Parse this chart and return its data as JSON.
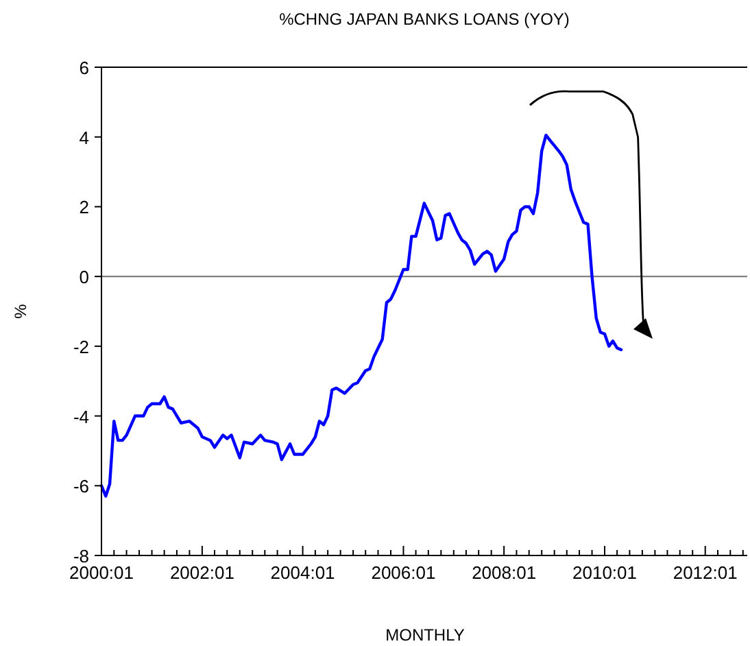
{
  "chart_data": {
    "type": "line",
    "title": "%CHNG JAPAN BANKS LOANS (YOY)",
    "xlabel": "MONTHLY",
    "ylabel": "%",
    "x": [
      "2000-01",
      "2000-02",
      "2000-03",
      "2000-04",
      "2000-05",
      "2000-06",
      "2000-07",
      "2000-09",
      "2000-11",
      "2000-12",
      "2001-01",
      "2001-03",
      "2001-04",
      "2001-05",
      "2001-06",
      "2001-08",
      "2001-10",
      "2001-12",
      "2002-01",
      "2002-03",
      "2002-04",
      "2002-06",
      "2002-07",
      "2002-08",
      "2002-10",
      "2002-11",
      "2003-01",
      "2003-03",
      "2003-04",
      "2003-06",
      "2003-07",
      "2003-08",
      "2003-10",
      "2003-11",
      "2004-01",
      "2004-03",
      "2004-04",
      "2004-05",
      "2004-06",
      "2004-07",
      "2004-08",
      "2004-09",
      "2004-11",
      "2005-01",
      "2005-02",
      "2005-04",
      "2005-05",
      "2005-06",
      "2005-08",
      "2005-09",
      "2005-10",
      "2005-11",
      "2006-01",
      "2006-02",
      "2006-03",
      "2006-04",
      "2006-06",
      "2006-07",
      "2006-08",
      "2006-09",
      "2006-10",
      "2006-11",
      "2006-12",
      "2007-02",
      "2007-03",
      "2007-04",
      "2007-05",
      "2007-06",
      "2007-08",
      "2007-09",
      "2007-10",
      "2007-11",
      "2008-01",
      "2008-02",
      "2008-03",
      "2008-04",
      "2008-05",
      "2008-06",
      "2008-07",
      "2008-08",
      "2008-09",
      "2008-10",
      "2008-11",
      "2008-12",
      "2009-01",
      "2009-02",
      "2009-03",
      "2009-04",
      "2009-05",
      "2009-06",
      "2009-07",
      "2009-08",
      "2009-09",
      "2009-10",
      "2009-11",
      "2009-12",
      "2010-01",
      "2010-02",
      "2010-03",
      "2010-04",
      "2010-05"
    ],
    "series": [
      {
        "color": "#0000ff",
        "values": [
          -6.0,
          -6.3,
          -5.95,
          -4.15,
          -4.7,
          -4.7,
          -4.55,
          -4.0,
          -4.0,
          -3.75,
          -3.65,
          -3.65,
          -3.45,
          -3.75,
          -3.8,
          -4.2,
          -4.15,
          -4.35,
          -4.6,
          -4.7,
          -4.9,
          -4.55,
          -4.65,
          -4.55,
          -5.2,
          -4.75,
          -4.8,
          -4.55,
          -4.7,
          -4.75,
          -4.8,
          -5.25,
          -4.8,
          -5.1,
          -5.1,
          -4.8,
          -4.6,
          -4.15,
          -4.25,
          -4.0,
          -3.25,
          -3.2,
          -3.35,
          -3.1,
          -3.05,
          -2.7,
          -2.65,
          -2.3,
          -1.8,
          -0.75,
          -0.65,
          -0.4,
          0.2,
          0.2,
          1.15,
          1.15,
          2.1,
          1.85,
          1.6,
          1.05,
          1.1,
          1.75,
          1.8,
          1.25,
          1.05,
          0.95,
          0.75,
          0.35,
          0.65,
          0.72,
          0.62,
          0.15,
          0.5,
          1.0,
          1.2,
          1.3,
          1.9,
          2.0,
          2.0,
          1.8,
          2.4,
          3.6,
          4.05,
          3.9,
          3.75,
          3.6,
          3.45,
          3.2,
          2.5,
          2.15,
          1.85,
          1.55,
          1.5,
          0.0,
          -1.2,
          -1.6,
          -1.65,
          -2.0,
          -1.85,
          -2.05,
          -2.1
        ]
      }
    ],
    "xlim": [
      "2000-01",
      "2012-11"
    ],
    "xticks": [
      {
        "value": "2000-01",
        "label": "2000:01"
      },
      {
        "value": "2000-04",
        "label": null
      },
      {
        "value": "2000-07",
        "label": null
      },
      {
        "value": "2000-10",
        "label": null
      },
      {
        "value": "2001-01",
        "label": null
      },
      {
        "value": "2001-04",
        "label": null
      },
      {
        "value": "2001-07",
        "label": null
      },
      {
        "value": "2001-10",
        "label": null
      },
      {
        "value": "2002-01",
        "label": "2002:01"
      },
      {
        "value": "2002-04",
        "label": null
      },
      {
        "value": "2002-07",
        "label": null
      },
      {
        "value": "2002-10",
        "label": null
      },
      {
        "value": "2003-01",
        "label": null
      },
      {
        "value": "2003-04",
        "label": null
      },
      {
        "value": "2003-07",
        "label": null
      },
      {
        "value": "2003-10",
        "label": null
      },
      {
        "value": "2004-01",
        "label": "2004:01"
      },
      {
        "value": "2004-04",
        "label": null
      },
      {
        "value": "2004-07",
        "label": null
      },
      {
        "value": "2004-10",
        "label": null
      },
      {
        "value": "2005-01",
        "label": null
      },
      {
        "value": "2005-04",
        "label": null
      },
      {
        "value": "2005-07",
        "label": null
      },
      {
        "value": "2005-10",
        "label": null
      },
      {
        "value": "2006-01",
        "label": "2006:01"
      },
      {
        "value": "2006-04",
        "label": null
      },
      {
        "value": "2006-07",
        "label": null
      },
      {
        "value": "2006-10",
        "label": null
      },
      {
        "value": "2007-01",
        "label": null
      },
      {
        "value": "2007-04",
        "label": null
      },
      {
        "value": "2007-07",
        "label": null
      },
      {
        "value": "2007-10",
        "label": null
      },
      {
        "value": "2008-01",
        "label": "2008:01"
      },
      {
        "value": "2008-04",
        "label": null
      },
      {
        "value": "2008-07",
        "label": null
      },
      {
        "value": "2008-10",
        "label": null
      },
      {
        "value": "2009-01",
        "label": null
      },
      {
        "value": "2009-04",
        "label": null
      },
      {
        "value": "2009-07",
        "label": null
      },
      {
        "value": "2009-10",
        "label": null
      },
      {
        "value": "2010-01",
        "label": "2010:01"
      },
      {
        "value": "2010-04",
        "label": null
      },
      {
        "value": "2010-07",
        "label": null
      },
      {
        "value": "2010-10",
        "label": null
      },
      {
        "value": "2011-01",
        "label": null
      },
      {
        "value": "2011-04",
        "label": null
      },
      {
        "value": "2011-07",
        "label": null
      },
      {
        "value": "2011-10",
        "label": null
      },
      {
        "value": "2012-01",
        "label": "2012:01"
      },
      {
        "value": "2012-04",
        "label": null
      },
      {
        "value": "2012-07",
        "label": null
      },
      {
        "value": "2012-10",
        "label": null
      }
    ],
    "ylim": [
      -8,
      6
    ],
    "yticks": [
      -8,
      -6,
      -4,
      -2,
      0,
      2,
      4,
      6
    ],
    "ref_lines": [
      {
        "axis": "y",
        "value": 0,
        "color": "#808080"
      }
    ],
    "grid": false,
    "marker": "none",
    "line_style": "solid"
  }
}
